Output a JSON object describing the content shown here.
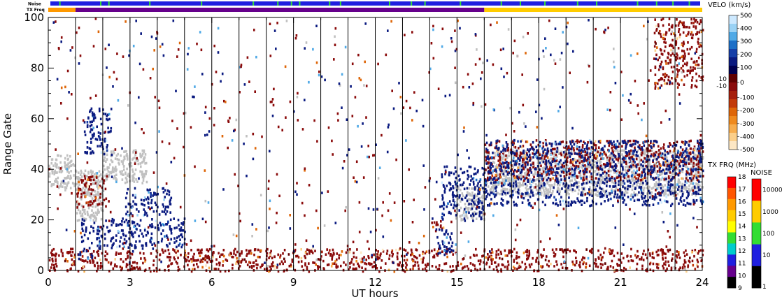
{
  "chart_data": {
    "type": "heatmap",
    "title": "",
    "xlabel": "UT hours",
    "ylabel": "Range Gate",
    "xlim": [
      0,
      24
    ],
    "ylim": [
      0,
      100
    ],
    "x_ticks": [
      "0",
      "3",
      "6",
      "9",
      "12",
      "15",
      "18",
      "21",
      "24"
    ],
    "x_tick_values": [
      0,
      3,
      6,
      9,
      12,
      15,
      18,
      21,
      24
    ],
    "y_ticks": [
      "0",
      "20",
      "40",
      "60",
      "80",
      "100"
    ],
    "y_tick_values": [
      0,
      20,
      40,
      60,
      80,
      100
    ],
    "scan_boundaries_ut": [
      1,
      2,
      3,
      4,
      5,
      6,
      7,
      8,
      9,
      10,
      11,
      12,
      13,
      14,
      15,
      16,
      17,
      18,
      19,
      20,
      21,
      22,
      23
    ],
    "ground_scatter_color": "#c0c0c0",
    "echo_regions": [
      {
        "kind": "ground",
        "t0": 0.0,
        "t1": 1.0,
        "g0": 33,
        "g1": 46
      },
      {
        "kind": "ground",
        "t0": 1.0,
        "t1": 2.0,
        "g0": 20,
        "g1": 40
      },
      {
        "kind": "ground",
        "t0": 2.0,
        "t1": 3.6,
        "g0": 35,
        "g1": 48
      },
      {
        "kind": "ground",
        "t0": 14.9,
        "t1": 16.0,
        "g0": 20,
        "g1": 34
      },
      {
        "kind": "ground",
        "t0": 16.0,
        "t1": 24.0,
        "g0": 30,
        "g1": 48
      },
      {
        "kind": "negative",
        "t0": 0.0,
        "t1": 24.0,
        "g0": 0,
        "g1": 9
      },
      {
        "kind": "negative",
        "t0": 1.0,
        "t1": 2.2,
        "g0": 25,
        "g1": 38
      },
      {
        "kind": "negative",
        "t0": 16.0,
        "t1": 24.0,
        "g0": 36,
        "g1": 52
      },
      {
        "kind": "negative",
        "t0": 13.9,
        "t1": 14.5,
        "g0": 16,
        "g1": 20
      },
      {
        "kind": "negative",
        "t0": 22.2,
        "t1": 24.0,
        "g0": 72,
        "g1": 100
      },
      {
        "kind": "positive",
        "t0": 1.2,
        "t1": 5.0,
        "g0": 9,
        "g1": 21
      },
      {
        "kind": "positive",
        "t0": 1.3,
        "t1": 2.3,
        "g0": 46,
        "g1": 65
      },
      {
        "kind": "positive",
        "t0": 2.8,
        "t1": 4.5,
        "g0": 22,
        "g1": 33
      },
      {
        "kind": "positive",
        "t0": 14.4,
        "t1": 16.0,
        "g0": 20,
        "g1": 42
      },
      {
        "kind": "positive",
        "t0": 14.2,
        "t1": 15.0,
        "g0": 6,
        "g1": 17
      },
      {
        "kind": "positive",
        "t0": 1.0,
        "t1": 1.6,
        "g0": 5,
        "g1": 9
      },
      {
        "kind": "positive",
        "t0": 16.0,
        "t1": 24.0,
        "g0": 26,
        "g1": 52
      }
    ],
    "noise_strip": {
      "label": "Noise",
      "base_color": "#1f1fe0",
      "mark_color": "#33dd33",
      "mark_times_ut": [
        0.4,
        1.9,
        2.2,
        3.7,
        5.6,
        7.5,
        8.4,
        8.9,
        9.2,
        10.3,
        10.7,
        12.5,
        13.3,
        13.8,
        15.1,
        16.6,
        17.3,
        18.2,
        19.4,
        20.1,
        21.6,
        22.3,
        22.9,
        23.5
      ]
    },
    "txfreq_strip": {
      "label": "TX Freq",
      "segments": [
        {
          "t0": 0.0,
          "t1": 1.0,
          "color": "#ff9900"
        },
        {
          "t0": 1.0,
          "t1": 16.0,
          "color": "#66008c"
        },
        {
          "t0": 16.0,
          "t1": 24.0,
          "color": "#ffcc00"
        }
      ]
    },
    "colorbars": [
      {
        "title": "VELO (km/s)",
        "tick_labels": [
          "500",
          "400",
          "300",
          "200",
          "100",
          "0",
          "-100",
          "-200",
          "-300",
          "-400",
          "-500"
        ],
        "side_labels": [
          "10",
          "-10"
        ],
        "colors": [
          "#cde9ff",
          "#9ad2f5",
          "#4fa9e6",
          "#1d6fc7",
          "#163fa8",
          "#0a1a80",
          "#000050",
          "#600000",
          "#8a0b0b",
          "#a61f0c",
          "#c23a0a",
          "#de6608",
          "#ef8a1e",
          "#f7ad4e",
          "#fbcf8a",
          "#fde7c4"
        ]
      },
      {
        "title": "TX FRQ (MHz)",
        "tick_labels": [
          "18",
          "17",
          "16",
          "15",
          "14",
          "13",
          "12",
          "11",
          "10",
          "9"
        ],
        "colors": [
          "#ff0000",
          "#ff5500",
          "#ff9900",
          "#ffcc00",
          "#ffff00",
          "#33dd33",
          "#00cccc",
          "#1f1fe0",
          "#66008c",
          "#000000"
        ]
      },
      {
        "title": "NOISE",
        "tick_labels": [
          "10000",
          "1000",
          "100",
          "10",
          "1"
        ],
        "colors": [
          "#ff0000",
          "#ffcc00",
          "#33dd33",
          "#1f1fe0",
          "#000000"
        ]
      }
    ],
    "legend": "right",
    "grid": false
  }
}
